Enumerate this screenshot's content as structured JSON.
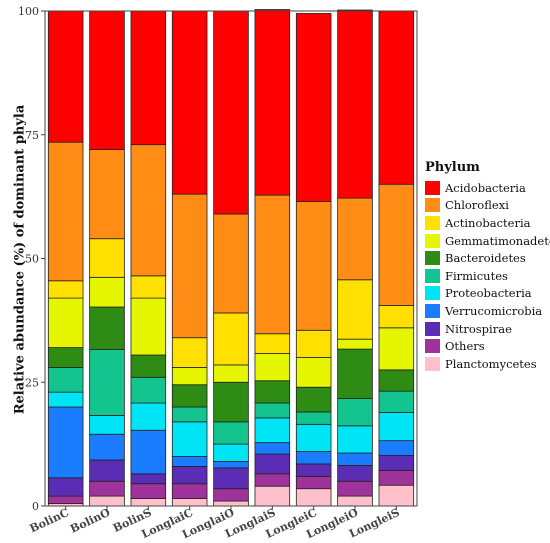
{
  "chart_data": {
    "type": "bar",
    "stacked": true,
    "ylabel": "Relative abundance (%) of dominant phyla",
    "xlabel": "",
    "ylim": [
      0,
      100
    ],
    "yticks": [
      0,
      25,
      50,
      75,
      100
    ],
    "categories": [
      "BolinC",
      "BolinO",
      "BolinS",
      "LonglaiC",
      "LonglaiO",
      "LonglaiS",
      "LongleiC",
      "LongleiO",
      "LongleiS"
    ],
    "legend_title": "Phylum",
    "legend_position": "right",
    "series": [
      {
        "name": "Planctomycetes",
        "color": "#FFC0CB",
        "values": [
          0.5,
          2.0,
          1.5,
          1.5,
          1.0,
          4.0,
          3.5,
          2.0,
          4.2
        ]
      },
      {
        "name": "Others",
        "color": "#A0339B",
        "values": [
          1.5,
          3.0,
          3.0,
          3.0,
          2.5,
          2.5,
          2.5,
          3.0,
          3.0
        ]
      },
      {
        "name": "Nitrospirae",
        "color": "#5B2DB5",
        "values": [
          3.7,
          4.3,
          2.0,
          3.5,
          4.2,
          4.0,
          2.5,
          3.2,
          3.0
        ]
      },
      {
        "name": "Verrucomicrobia",
        "color": "#1A7CFF",
        "values": [
          14.3,
          5.2,
          8.8,
          2.0,
          1.3,
          2.3,
          2.5,
          2.5,
          3.0
        ]
      },
      {
        "name": "Proteobacteria",
        "color": "#00E5F5",
        "values": [
          3.0,
          3.8,
          5.5,
          7.0,
          3.5,
          5.0,
          5.5,
          5.5,
          5.7
        ]
      },
      {
        "name": "Firmicutes",
        "color": "#14C48F",
        "values": [
          5.0,
          13.3,
          5.2,
          3.0,
          4.5,
          3.0,
          2.5,
          5.5,
          4.3
        ]
      },
      {
        "name": "Bacteroidetes",
        "color": "#2E8B14",
        "values": [
          4.0,
          8.6,
          4.5,
          4.5,
          8.0,
          4.5,
          5.0,
          10.0,
          4.3
        ]
      },
      {
        "name": "Gemmatimonadetes",
        "color": "#E6F500",
        "values": [
          10.0,
          6.0,
          11.5,
          3.5,
          3.5,
          5.5,
          6.0,
          2.0,
          8.5
        ]
      },
      {
        "name": "Actinobacteria",
        "color": "#FFE000",
        "values": [
          3.5,
          7.8,
          4.5,
          6.0,
          10.5,
          4.0,
          5.5,
          12.0,
          4.5
        ]
      },
      {
        "name": "Chloroflexi",
        "color": "#FF8C14",
        "values": [
          28.0,
          18.0,
          26.5,
          29.0,
          20.0,
          28.0,
          26.0,
          16.5,
          24.5
        ]
      },
      {
        "name": "Acidobacteria",
        "color": "#FF0000",
        "values": [
          26.5,
          28.0,
          27.0,
          37.0,
          41.0,
          37.5,
          38.0,
          38.0,
          35.0
        ]
      }
    ]
  },
  "legend_order": [
    "Acidobacteria",
    "Chloroflexi",
    "Actinobacteria",
    "Gemmatimonadetes",
    "Bacteroidetes",
    "Firmicutes",
    "Proteobacteria",
    "Verrucomicrobia",
    "Nitrospirae",
    "Others",
    "Planctomycetes"
  ]
}
